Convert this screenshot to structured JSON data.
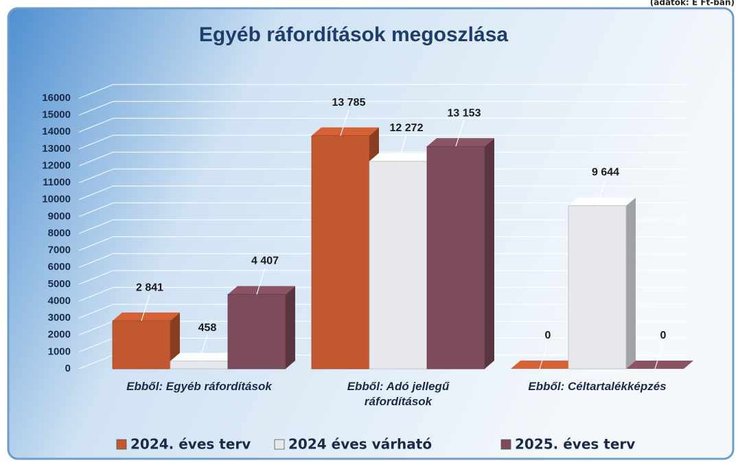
{
  "chart_data": {
    "type": "bar3d",
    "title": "Egyéb ráfordítások megoszlása",
    "unit_note": "(adatok: E Ft-ban)",
    "categories": [
      "Ebből: Egyéb ráfordítások",
      "Ebből: Adó jellegű ráfordítások",
      "Ebből: Céltartalékképzés"
    ],
    "series": [
      {
        "name": "2024. éves terv",
        "color": "#c2582f",
        "values": [
          2841,
          13785,
          0
        ],
        "value_labels": [
          "2 841",
          "13 785",
          "0"
        ]
      },
      {
        "name": "2024 éves várható",
        "color": "#e6e8ec",
        "values": [
          458,
          12272,
          9644
        ],
        "value_labels": [
          "458",
          "12 272",
          "9 644"
        ]
      },
      {
        "name": "2025. éves terv",
        "color": "#7d4c5c",
        "values": [
          4407,
          13153,
          0
        ],
        "value_labels": [
          "4 407",
          "13 153",
          "0"
        ]
      }
    ],
    "ylim": [
      0,
      16000
    ],
    "yticks": [
      0,
      1000,
      2000,
      3000,
      4000,
      5000,
      6000,
      7000,
      8000,
      9000,
      10000,
      11000,
      12000,
      13000,
      14000,
      15000,
      16000
    ],
    "grid": true
  }
}
